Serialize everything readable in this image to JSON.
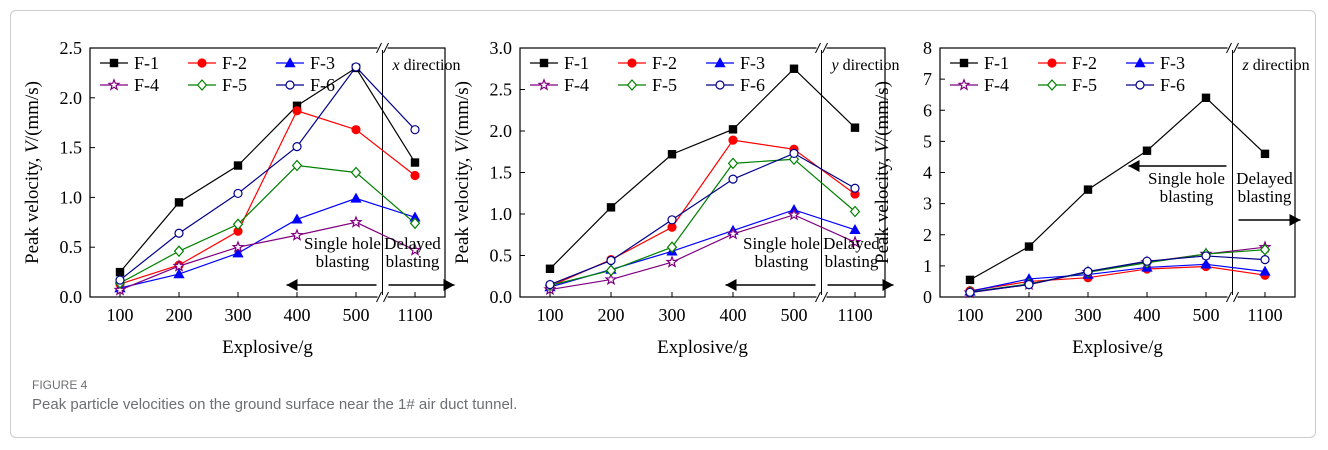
{
  "figure": {
    "label": "FIGURE 4",
    "caption": "Peak particle velocities on the ground surface near the 1# air duct tunnel."
  },
  "series_styles": {
    "F-1": {
      "color": "#000000",
      "marker": "square",
      "fill": "filled"
    },
    "F-2": {
      "color": "#ff0000",
      "marker": "circle",
      "fill": "filled"
    },
    "F-3": {
      "color": "#0000ff",
      "marker": "triangle",
      "fill": "filled"
    },
    "F-4": {
      "color": "#800080",
      "marker": "star",
      "fill": "open"
    },
    "F-5": {
      "color": "#008000",
      "marker": "diamond",
      "fill": "open"
    },
    "F-6": {
      "color": "#00008b",
      "marker": "circle",
      "fill": "open"
    }
  },
  "chart_data": [
    {
      "type": "line",
      "direction_label_italic": "x",
      "direction_label_rest": "direction",
      "xlabel": "Explosive/g",
      "ylabel_prefix": "Peak velocity,",
      "ylabel_var": "V",
      "ylabel_unit": "/(mm/s)",
      "categories": [
        "100",
        "200",
        "300",
        "400",
        "500",
        "1100"
      ],
      "ylim": [
        0,
        2.5
      ],
      "yticks": [
        "0.0",
        "0.5",
        "1.0",
        "1.5",
        "2.0",
        "2.5"
      ],
      "ytick_values": [
        0,
        0.5,
        1.0,
        1.5,
        2.0,
        2.5
      ],
      "annotation_left": [
        "Single hole",
        "blasting"
      ],
      "annotation_right": [
        "Delayed",
        "blasting"
      ],
      "series": [
        {
          "name": "F-1",
          "values": [
            0.25,
            0.95,
            1.32,
            1.92,
            2.3,
            1.35
          ]
        },
        {
          "name": "F-2",
          "values": [
            0.13,
            0.32,
            0.66,
            1.87,
            1.68,
            1.22
          ]
        },
        {
          "name": "F-3",
          "values": [
            0.09,
            0.23,
            0.44,
            0.78,
            0.99,
            0.8
          ]
        },
        {
          "name": "F-4",
          "values": [
            0.07,
            0.31,
            0.5,
            0.62,
            0.75,
            0.47
          ]
        },
        {
          "name": "F-5",
          "values": [
            0.14,
            0.46,
            0.73,
            1.32,
            1.25,
            0.74
          ]
        },
        {
          "name": "F-6",
          "values": [
            0.17,
            0.64,
            1.04,
            1.51,
            2.31,
            1.68
          ]
        }
      ]
    },
    {
      "type": "line",
      "direction_label_italic": "y",
      "direction_label_rest": "direction",
      "xlabel": "Explosive/g",
      "ylabel_prefix": "Peak velocity,",
      "ylabel_var": "V",
      "ylabel_unit": "/(mm/s)",
      "categories": [
        "100",
        "200",
        "300",
        "400",
        "500",
        "1100"
      ],
      "ylim": [
        0,
        3.0
      ],
      "yticks": [
        "0.0",
        "0.5",
        "1.0",
        "1.5",
        "2.0",
        "2.5",
        "3.0"
      ],
      "ytick_values": [
        0,
        0.5,
        1.0,
        1.5,
        2.0,
        2.5,
        3.0
      ],
      "annotation_left": [
        "Single hole",
        "blasting"
      ],
      "annotation_right": [
        "Delayed",
        "blasting"
      ],
      "series": [
        {
          "name": "F-1",
          "values": [
            0.34,
            1.08,
            1.72,
            2.02,
            2.75,
            2.04
          ]
        },
        {
          "name": "F-2",
          "values": [
            0.13,
            0.45,
            0.84,
            1.89,
            1.78,
            1.24
          ]
        },
        {
          "name": "F-3",
          "values": [
            0.12,
            0.33,
            0.55,
            0.8,
            1.05,
            0.81
          ]
        },
        {
          "name": "F-4",
          "values": [
            0.09,
            0.21,
            0.42,
            0.76,
            0.99,
            0.66
          ]
        },
        {
          "name": "F-5",
          "values": [
            0.14,
            0.32,
            0.6,
            1.61,
            1.66,
            1.03
          ]
        },
        {
          "name": "F-6",
          "values": [
            0.15,
            0.44,
            0.93,
            1.42,
            1.73,
            1.31
          ]
        }
      ]
    },
    {
      "type": "line",
      "direction_label_italic": "z",
      "direction_label_rest": "direction",
      "xlabel": "Explosive/g",
      "ylabel_prefix": "Peak velocity,",
      "ylabel_var": "V",
      "ylabel_unit": "/(mm/s)",
      "categories": [
        "100",
        "200",
        "300",
        "400",
        "500",
        "1100"
      ],
      "ylim": [
        0,
        8
      ],
      "yticks": [
        "0",
        "1",
        "2",
        "3",
        "4",
        "5",
        "6",
        "7",
        "8"
      ],
      "ytick_values": [
        0,
        1,
        2,
        3,
        4,
        5,
        6,
        7,
        8
      ],
      "annotation_left": [
        "Single hole",
        "blasting"
      ],
      "annotation_right": [
        "Delayed",
        "blasting"
      ],
      "series": [
        {
          "name": "F-1",
          "values": [
            0.55,
            1.62,
            3.45,
            4.7,
            6.4,
            4.6
          ]
        },
        {
          "name": "F-2",
          "values": [
            0.2,
            0.5,
            0.62,
            0.9,
            0.98,
            0.7
          ]
        },
        {
          "name": "F-3",
          "values": [
            0.18,
            0.58,
            0.72,
            0.95,
            1.05,
            0.82
          ]
        },
        {
          "name": "F-4",
          "values": [
            0.14,
            0.4,
            0.8,
            1.12,
            1.38,
            1.6
          ]
        },
        {
          "name": "F-5",
          "values": [
            0.16,
            0.42,
            0.8,
            1.1,
            1.38,
            1.52
          ]
        },
        {
          "name": "F-6",
          "values": [
            0.15,
            0.4,
            0.82,
            1.15,
            1.32,
            1.2
          ]
        }
      ]
    }
  ]
}
